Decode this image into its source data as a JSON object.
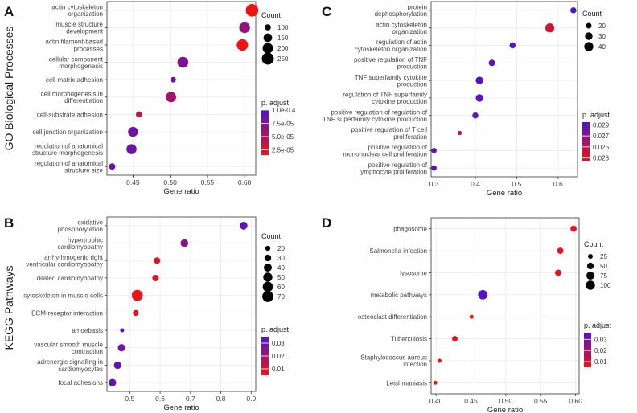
{
  "figure": {
    "side_labels": [
      "GO Biological Processes",
      "KEGG Pathways"
    ]
  },
  "chart_data": [
    {
      "panel": "A",
      "type": "scatter",
      "xlabel": "Gene ratio",
      "ylabel": "",
      "xlim": [
        0.415,
        0.615
      ],
      "xticks": [
        0.45,
        0.5,
        0.55,
        0.6
      ],
      "xtick_labels": [
        "0.45",
        "0.50",
        "0.55",
        "0.60"
      ],
      "categories": [
        "actin cytoskeleton\norganization",
        "muscle structure\ndevelopment",
        "actin filament-based\nprocesses",
        "cellular component\nmorphogenesis",
        "cell-matrix adhesion",
        "cell morphogenesis in\ndifferentiation",
        "cell-substrate adhesion",
        "cell junction organization",
        "regulation of anatomical\nstructure morphogenesis",
        "regulation of anatomical\nstructure size"
      ],
      "x": [
        0.61,
        0.6,
        0.597,
        0.517,
        0.504,
        0.501,
        0.458,
        0.45,
        0.448,
        0.422
      ],
      "count": [
        270,
        210,
        230,
        215,
        90,
        200,
        100,
        185,
        190,
        105
      ],
      "padj": [
        1.5e-05,
        6.5e-05,
        1.5e-05,
        7.5e-05,
        8.5e-05,
        5.5e-05,
        4e-05,
        8.5e-05,
        8.5e-05,
        8.8e-05
      ],
      "size_legend": {
        "title": "Count",
        "values": [
          100,
          150,
          200,
          250
        ],
        "labels": [
          "100",
          "150",
          "200",
          "250"
        ]
      },
      "color_legend": {
        "title": "p. adjust",
        "range": [
          1.5e-05,
          0.0001
        ],
        "ticks": [
          0.0001,
          7.5e-05,
          5e-05,
          2.5e-05
        ],
        "labels": [
          "1.0e-0.4",
          "7.5e-05",
          "5.0e-05",
          "2.5e-05"
        ]
      },
      "count_scale": {
        "min": 80,
        "max": 280,
        "rmin": 3,
        "rmax": 8
      }
    },
    {
      "panel": "C",
      "type": "scatter",
      "xlabel": "Gene ratio",
      "ylabel": "",
      "xlim": [
        0.293,
        0.647
      ],
      "xticks": [
        0.3,
        0.4,
        0.5,
        0.6
      ],
      "xtick_labels": [
        "0.3",
        "0.4",
        "0.5",
        "0.6"
      ],
      "categories": [
        "protein\ndephosphorylation",
        "actin cytoskeleton\norganization",
        "regulation of actin\ncytoskeleton organization",
        "positive regulation of TNF\nproduction",
        "TNF superfamily cytokine\nproduction",
        "regulation of TNF superfamily\ncytokine production",
        "positive regulation of regulation of\nTNF superfamily cytokine production",
        "positive regulation of T cell\nproliferation",
        "positive regulation of\nmononuclear cell proliferation",
        "positive regulation of\nlymphocyte proliferation"
      ],
      "x": [
        0.637,
        0.58,
        0.49,
        0.44,
        0.41,
        0.41,
        0.4,
        0.362,
        0.3,
        0.3
      ],
      "count": [
        22,
        40,
        22,
        24,
        30,
        30,
        22,
        15,
        19,
        19
      ],
      "padj": [
        0.0295,
        0.0238,
        0.029,
        0.029,
        0.029,
        0.029,
        0.029,
        0.0245,
        0.029,
        0.029
      ],
      "size_legend": {
        "title": "Count",
        "values": [
          20,
          30,
          40
        ],
        "labels": [
          "20",
          "30",
          "40"
        ]
      },
      "color_legend": {
        "title": "p. adjust",
        "range": [
          0.0225,
          0.0295
        ],
        "ticks": [
          0.029,
          0.027,
          0.025,
          0.023
        ],
        "labels": [
          "0.029",
          "0.027",
          "0.025",
          "0.023"
        ]
      },
      "count_scale": {
        "min": 12,
        "max": 44,
        "rmin": 2,
        "rmax": 6
      }
    },
    {
      "panel": "B",
      "type": "scatter",
      "xlabel": "Gene ratio",
      "ylabel": "",
      "xlim": [
        0.425,
        0.915
      ],
      "xticks": [
        0.5,
        0.6,
        0.7,
        0.8,
        0.9
      ],
      "xtick_labels": [
        "0.5",
        "0.6",
        "0.7",
        "0.8",
        "0.9"
      ],
      "categories": [
        "oxidative\nphosphorylation",
        "hypertrophic\ncardiomyopathy",
        "arrhythmogenic right\nventricular cardiomyopathy",
        "dilated cardiomyopathy",
        "cytoskeleton in muscle cells",
        "ECM-receptor interaction",
        "amoebasis",
        "vascular smooth muscle\ncontraction",
        "adrenergic signalling in\ncardiomyocytes",
        "focal adhesions"
      ],
      "x": [
        0.875,
        0.68,
        0.59,
        0.585,
        0.525,
        0.52,
        0.475,
        0.473,
        0.46,
        0.443
      ],
      "count": [
        38,
        38,
        28,
        28,
        70,
        25,
        15,
        35,
        35,
        36
      ],
      "padj": [
        0.032,
        0.025,
        0.008,
        0.008,
        0.005,
        0.008,
        0.032,
        0.028,
        0.032,
        0.032
      ],
      "size_legend": {
        "title": "Count",
        "values": [
          20,
          30,
          40,
          50,
          60,
          70
        ],
        "labels": [
          "20",
          "30",
          "40",
          "50",
          "60",
          "70"
        ]
      },
      "color_legend": {
        "title": "p. adjust",
        "range": [
          0.005,
          0.035
        ],
        "ticks": [
          0.03,
          0.02,
          0.01
        ],
        "labels": [
          "0.03",
          "0.02",
          "0.01"
        ]
      },
      "count_scale": {
        "min": 12,
        "max": 72,
        "rmin": 2,
        "rmax": 7
      }
    },
    {
      "panel": "D",
      "type": "scatter",
      "xlabel": "Gene ratio",
      "ylabel": "",
      "xlim": [
        0.393,
        0.605
      ],
      "xticks": [
        0.4,
        0.45,
        0.5,
        0.55,
        0.6
      ],
      "xtick_labels": [
        "0.40",
        "0.45",
        "0.50",
        "0.55",
        "0.60"
      ],
      "categories": [
        "phagosome",
        "Salmonella infection",
        "lysosome",
        "metabolic pathways",
        "osteoclast differentiation",
        "Tuberculosis",
        "Staphylococcus aureus\ninfection",
        "Leishmaniasis"
      ],
      "x": [
        0.597,
        0.578,
        0.575,
        0.467,
        0.451,
        0.427,
        0.405,
        0.399
      ],
      "count": [
        45,
        45,
        45,
        105,
        18,
        35,
        18,
        16
      ],
      "padj": [
        0.007,
        0.007,
        0.007,
        0.035,
        0.006,
        0.006,
        0.006,
        0.006
      ],
      "size_legend": {
        "title": "Count",
        "values": [
          25,
          50,
          75,
          100
        ],
        "labels": [
          "25",
          "50",
          "75",
          "100"
        ]
      },
      "color_legend": {
        "title": "p. adjust",
        "range": [
          0.005,
          0.036
        ],
        "ticks": [
          0.03,
          0.02,
          0.01
        ],
        "labels": [
          "0.03",
          "0.02",
          "0.01"
        ]
      },
      "count_scale": {
        "min": 10,
        "max": 110,
        "rmin": 2,
        "rmax": 6
      }
    }
  ]
}
